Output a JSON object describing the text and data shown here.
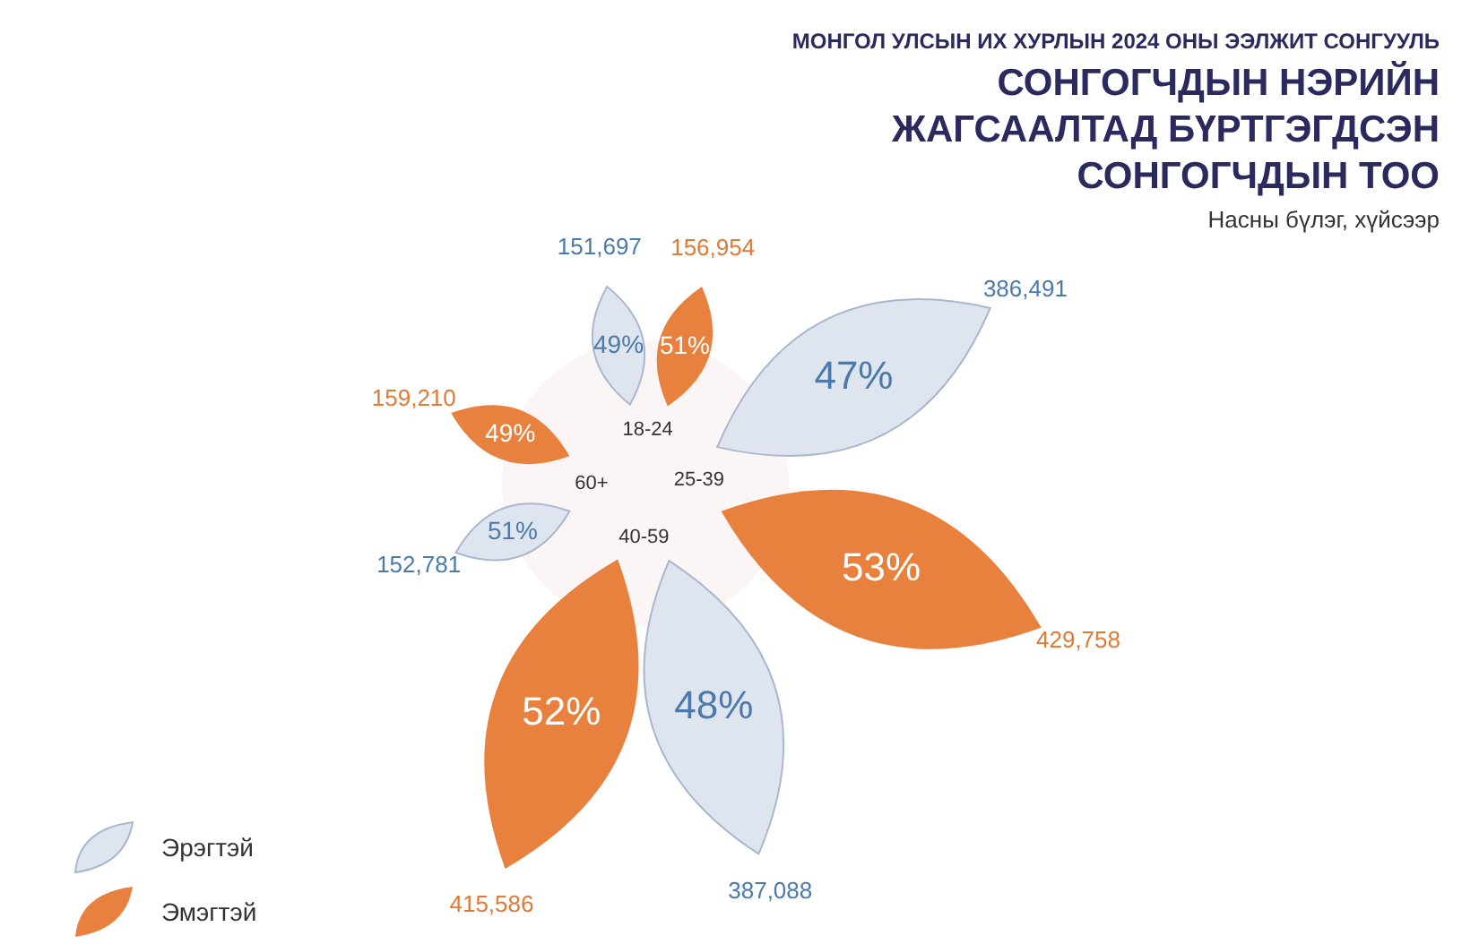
{
  "chart_data": {
    "type": "other",
    "title": "СОНГОГЧДЫН НЭРИЙН ЖАГСААЛТАД БҮРТГЭГДСЭН СОНГОГЧДЫН ТОО",
    "subtitle": "Насны бүлэг, хүйсээр",
    "categories": [
      "18-24",
      "25-39",
      "40-59",
      "60+"
    ],
    "series": [
      {
        "name": "Эрэгтэй",
        "color": "#dfe5ef",
        "values": [
          151697,
          386491,
          387088,
          152781
        ],
        "value_labels": [
          "151,697",
          "386,491",
          "387,088",
          "152,781"
        ]
      },
      {
        "name": "Эмэгтэй",
        "color": "#e8813d",
        "values": [
          156954,
          429758,
          415586,
          159210
        ],
        "value_labels": [
          "156,954",
          "429,758",
          "415,586",
          "159,210"
        ]
      }
    ],
    "legend": "bottom left",
    "annotations": [
      "МОНГОЛ УЛСЫН ИХ ХУРЛЫН 2024 ОНЫ ЭЭЛЖИТ СОНГУУЛЬ",
      {
        "text": "49%",
        "x": "18-24"
      },
      {
        "text": "47%",
        "x": "25-39"
      },
      {
        "text": "48%",
        "x": "40-59"
      },
      {
        "text": "51%",
        "x": "60+"
      },
      {
        "text": "51%",
        "x": "18-24"
      },
      {
        "text": "53%",
        "x": "25-39"
      },
      {
        "text": "52%",
        "x": "40-59"
      },
      {
        "text": "49%",
        "x": "60+"
      }
    ]
  }
}
